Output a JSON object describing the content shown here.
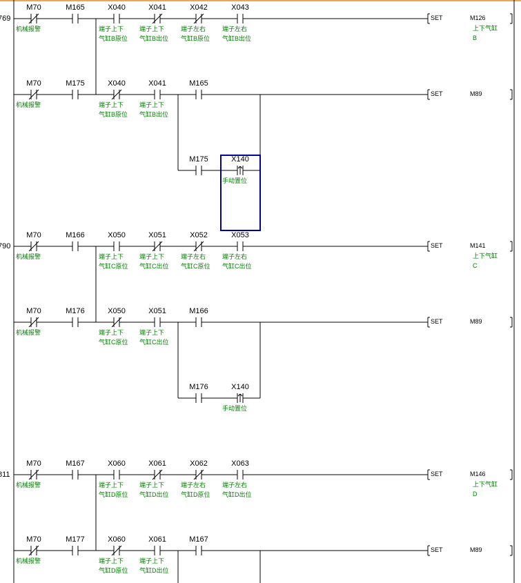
{
  "colors": {
    "comment": "#008000",
    "selection": "#0000a0",
    "rail": "#000000",
    "top_border": "#e8a850"
  },
  "rungs": [
    {
      "step": "769",
      "contacts": [
        {
          "operand": "M70",
          "type": "nc",
          "comments": [
            "机械报警"
          ]
        },
        {
          "operand": "M165",
          "type": "no",
          "comments": []
        },
        {
          "operand": "X040",
          "type": "no",
          "comments": [
            "端子上下",
            "气缸B原位"
          ]
        },
        {
          "operand": "X041",
          "type": "nc",
          "comments": [
            "端子上下",
            "气缸B出位"
          ]
        },
        {
          "operand": "X042",
          "type": "nc",
          "comments": [
            "端子左右",
            "气缸B原位"
          ]
        },
        {
          "operand": "X043",
          "type": "no",
          "comments": [
            "端子左右",
            "气缸B出位"
          ]
        }
      ],
      "coil": {
        "instruction": "SET",
        "operand": "M126",
        "comments": [
          "上下气缸",
          "B"
        ]
      }
    },
    {
      "step": "",
      "contacts": [
        {
          "operand": "M70",
          "type": "nc",
          "comments": [
            "机械报警"
          ]
        },
        {
          "operand": "M175",
          "type": "no",
          "comments": []
        },
        {
          "operand": "X040",
          "type": "nc",
          "comments": [
            "端子上下",
            "气缸B原位"
          ]
        },
        {
          "operand": "X041",
          "type": "no",
          "comments": [
            "端子上下",
            "气缸B出位"
          ]
        },
        {
          "operand": "M165",
          "type": "no",
          "comments": []
        }
      ],
      "branch": [
        {
          "operand": "M175",
          "type": "no",
          "comments": []
        },
        {
          "operand": "X140",
          "type": "rising",
          "comments": [
            "手动置位"
          ],
          "selected": true
        }
      ],
      "coil": {
        "instruction": "SET",
        "operand": "M89",
        "comments": []
      }
    },
    {
      "step": "790",
      "contacts": [
        {
          "operand": "M70",
          "type": "nc",
          "comments": [
            "机械报警"
          ]
        },
        {
          "operand": "M166",
          "type": "no",
          "comments": []
        },
        {
          "operand": "X050",
          "type": "no",
          "comments": [
            "端子上下",
            "气缸C原位"
          ]
        },
        {
          "operand": "X051",
          "type": "nc",
          "comments": [
            "端子上下",
            "气缸C出位"
          ]
        },
        {
          "operand": "X052",
          "type": "nc",
          "comments": [
            "端子左右",
            "气缸C原位"
          ]
        },
        {
          "operand": "X053",
          "type": "no",
          "comments": [
            "端子左右",
            "气缸C出位"
          ]
        }
      ],
      "coil": {
        "instruction": "SET",
        "operand": "M141",
        "comments": [
          "上下气缸",
          "C"
        ]
      }
    },
    {
      "step": "",
      "contacts": [
        {
          "operand": "M70",
          "type": "nc",
          "comments": [
            "机械报警"
          ]
        },
        {
          "operand": "M176",
          "type": "no",
          "comments": []
        },
        {
          "operand": "X050",
          "type": "nc",
          "comments": [
            "端子上下",
            "气缸C原位"
          ]
        },
        {
          "operand": "X051",
          "type": "no",
          "comments": [
            "端子上下",
            "气缸C出位"
          ]
        },
        {
          "operand": "M166",
          "type": "no",
          "comments": []
        }
      ],
      "branch": [
        {
          "operand": "M176",
          "type": "no",
          "comments": []
        },
        {
          "operand": "X140",
          "type": "rising",
          "comments": [
            "手动置位"
          ]
        }
      ],
      "coil": {
        "instruction": "SET",
        "operand": "M89",
        "comments": []
      }
    },
    {
      "step": "811",
      "contacts": [
        {
          "operand": "M70",
          "type": "nc",
          "comments": [
            "机械报警"
          ]
        },
        {
          "operand": "M167",
          "type": "no",
          "comments": []
        },
        {
          "operand": "X060",
          "type": "no",
          "comments": [
            "端子上下",
            "气缸D原位"
          ]
        },
        {
          "operand": "X061",
          "type": "nc",
          "comments": [
            "端子上下",
            "气缸D出位"
          ]
        },
        {
          "operand": "X062",
          "type": "nc",
          "comments": [
            "端子左右",
            "气缸D原位"
          ]
        },
        {
          "operand": "X063",
          "type": "no",
          "comments": [
            "端子左右",
            "气缸D出位"
          ]
        }
      ],
      "coil": {
        "instruction": "SET",
        "operand": "M146",
        "comments": [
          "上下气缸",
          "D"
        ]
      }
    },
    {
      "step": "",
      "contacts": [
        {
          "operand": "M70",
          "type": "nc",
          "comments": [
            "机械报警"
          ]
        },
        {
          "operand": "M177",
          "type": "no",
          "comments": []
        },
        {
          "operand": "X060",
          "type": "nc",
          "comments": [
            "端子上下",
            "气缸D原位"
          ]
        },
        {
          "operand": "X061",
          "type": "no",
          "comments": [
            "端子上下",
            "气缸D出位"
          ]
        },
        {
          "operand": "M167",
          "type": "no",
          "comments": []
        }
      ],
      "branch_continues": true,
      "coil": {
        "instruction": "SET",
        "operand": "M89",
        "comments": []
      }
    }
  ]
}
